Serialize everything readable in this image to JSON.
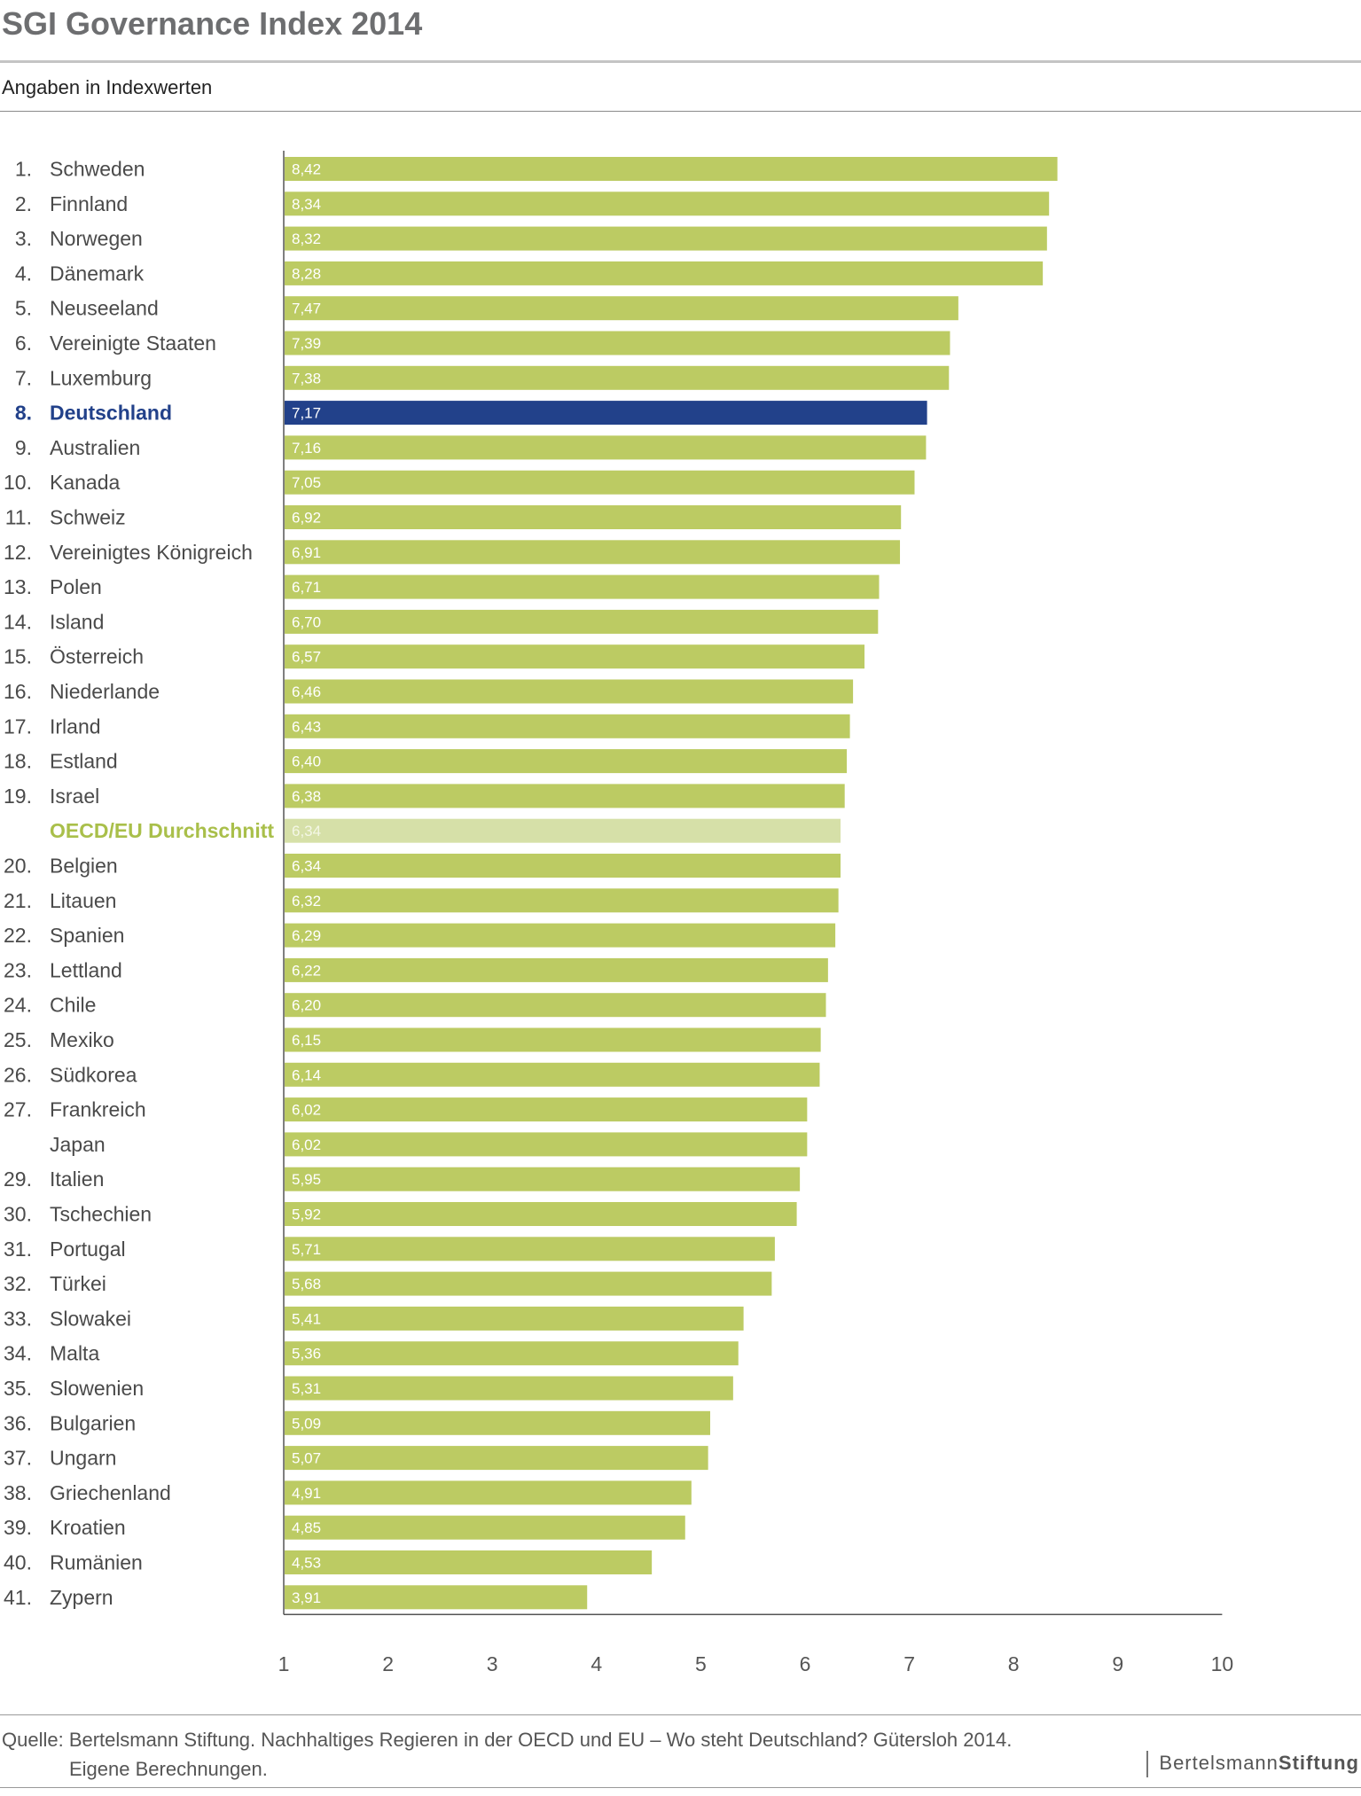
{
  "header": {
    "title": "SGI Governance Index 2014",
    "subtitle": "Angaben in Indexwerten"
  },
  "footer": {
    "source_line1": "Quelle: Bertelsmann Stiftung. Nachhaltiges Regieren in der OECD und EU – Wo steht Deutschland? Gütersloh 2014.",
    "source_line2": "Eigene Berechnungen.",
    "logo_regular": "Bertelsmann",
    "logo_bold": "Stiftung"
  },
  "colors": {
    "bar": "#bccb63",
    "highlight": "#22418a",
    "average": "#d6e0a8",
    "average_label": "#a9bf4a"
  },
  "chart_data": {
    "type": "bar",
    "orientation": "horizontal",
    "xlim": [
      1,
      10
    ],
    "x_ticks": [
      "1",
      "2",
      "3",
      "4",
      "5",
      "6",
      "7",
      "8",
      "9",
      "10"
    ],
    "grid": false,
    "rows": [
      {
        "rank": "1.",
        "name": "Schweden",
        "value": 8.42,
        "label": "8,42"
      },
      {
        "rank": "2.",
        "name": "Finnland",
        "value": 8.34,
        "label": "8,34"
      },
      {
        "rank": "3.",
        "name": "Norwegen",
        "value": 8.32,
        "label": "8,32"
      },
      {
        "rank": "4.",
        "name": "Dänemark",
        "value": 8.28,
        "label": "8,28"
      },
      {
        "rank": "5.",
        "name": "Neuseeland",
        "value": 7.47,
        "label": "7,47"
      },
      {
        "rank": "6.",
        "name": "Vereinigte Staaten",
        "value": 7.39,
        "label": "7,39"
      },
      {
        "rank": "7.",
        "name": "Luxemburg",
        "value": 7.38,
        "label": "7,38"
      },
      {
        "rank": "8.",
        "name": "Deutschland",
        "value": 7.17,
        "label": "7,17",
        "highlight": true
      },
      {
        "rank": "9.",
        "name": "Australien",
        "value": 7.16,
        "label": "7,16"
      },
      {
        "rank": "10.",
        "name": "Kanada",
        "value": 7.05,
        "label": "7,05"
      },
      {
        "rank": "11.",
        "name": "Schweiz",
        "value": 6.92,
        "label": "6,92"
      },
      {
        "rank": "12.",
        "name": "Vereinigtes Königreich",
        "value": 6.91,
        "label": "6,91"
      },
      {
        "rank": "13.",
        "name": "Polen",
        "value": 6.71,
        "label": "6,71"
      },
      {
        "rank": "14.",
        "name": "Island",
        "value": 6.7,
        "label": "6,70"
      },
      {
        "rank": "15.",
        "name": "Österreich",
        "value": 6.57,
        "label": "6,57"
      },
      {
        "rank": "16.",
        "name": "Niederlande",
        "value": 6.46,
        "label": "6,46"
      },
      {
        "rank": "17.",
        "name": "Irland",
        "value": 6.43,
        "label": "6,43"
      },
      {
        "rank": "18.",
        "name": "Estland",
        "value": 6.4,
        "label": "6,40"
      },
      {
        "rank": "19.",
        "name": "Israel",
        "value": 6.38,
        "label": "6,38"
      },
      {
        "rank": "",
        "name": "OECD/EU Durchschnitt",
        "value": 6.34,
        "label": "6,34",
        "average": true
      },
      {
        "rank": "20.",
        "name": "Belgien",
        "value": 6.34,
        "label": "6,34"
      },
      {
        "rank": "21.",
        "name": "Litauen",
        "value": 6.32,
        "label": "6,32"
      },
      {
        "rank": "22.",
        "name": "Spanien",
        "value": 6.29,
        "label": "6,29"
      },
      {
        "rank": "23.",
        "name": "Lettland",
        "value": 6.22,
        "label": "6,22"
      },
      {
        "rank": "24.",
        "name": "Chile",
        "value": 6.2,
        "label": "6,20"
      },
      {
        "rank": "25.",
        "name": "Mexiko",
        "value": 6.15,
        "label": "6,15"
      },
      {
        "rank": "26.",
        "name": "Südkorea",
        "value": 6.14,
        "label": "6,14"
      },
      {
        "rank": "27.",
        "name": "Frankreich",
        "value": 6.02,
        "label": "6,02"
      },
      {
        "rank": "",
        "name": "Japan",
        "value": 6.02,
        "label": "6,02"
      },
      {
        "rank": "29.",
        "name": "Italien",
        "value": 5.95,
        "label": "5,95"
      },
      {
        "rank": "30.",
        "name": "Tschechien",
        "value": 5.92,
        "label": "5,92"
      },
      {
        "rank": "31.",
        "name": "Portugal",
        "value": 5.71,
        "label": "5,71"
      },
      {
        "rank": "32.",
        "name": "Türkei",
        "value": 5.68,
        "label": "5,68"
      },
      {
        "rank": "33.",
        "name": "Slowakei",
        "value": 5.41,
        "label": "5,41"
      },
      {
        "rank": "34.",
        "name": "Malta",
        "value": 5.36,
        "label": "5,36"
      },
      {
        "rank": "35.",
        "name": "Slowenien",
        "value": 5.31,
        "label": "5,31"
      },
      {
        "rank": "36.",
        "name": "Bulgarien",
        "value": 5.09,
        "label": "5,09"
      },
      {
        "rank": "37.",
        "name": "Ungarn",
        "value": 5.07,
        "label": "5,07"
      },
      {
        "rank": "38.",
        "name": "Griechenland",
        "value": 4.91,
        "label": "4,91"
      },
      {
        "rank": "39.",
        "name": "Kroatien",
        "value": 4.85,
        "label": "4,85"
      },
      {
        "rank": "40.",
        "name": "Rumänien",
        "value": 4.53,
        "label": "4,53"
      },
      {
        "rank": "41.",
        "name": "Zypern",
        "value": 3.91,
        "label": "3,91"
      }
    ]
  }
}
